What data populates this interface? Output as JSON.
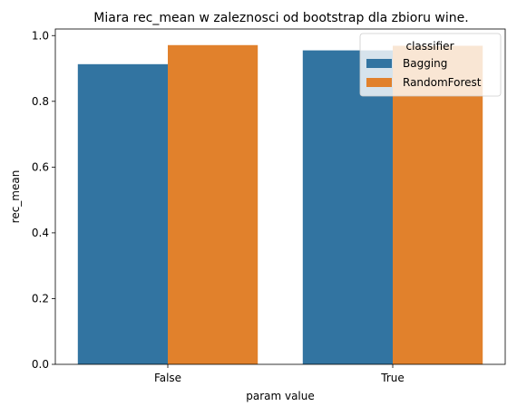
{
  "chart_data": {
    "type": "bar",
    "title": "Miara rec_mean w zaleznosci od bootstrap dla zbioru wine.",
    "xlabel": "param value",
    "ylabel": "rec_mean",
    "categories": [
      "False",
      "True"
    ],
    "series": [
      {
        "name": "Bagging",
        "values": [
          0.913,
          0.955
        ],
        "color": "#3274a1"
      },
      {
        "name": "RandomForest",
        "values": [
          0.971,
          0.969
        ],
        "color": "#e1812c"
      }
    ],
    "ylim": [
      0,
      1.02
    ],
    "yticks": [
      0.0,
      0.2,
      0.4,
      0.6,
      0.8,
      1.0
    ],
    "ytick_labels": [
      "0.0",
      "0.2",
      "0.4",
      "0.6",
      "0.8",
      "1.0"
    ],
    "grid": false,
    "legend": {
      "title": "classifier",
      "placement": "top-right"
    }
  }
}
